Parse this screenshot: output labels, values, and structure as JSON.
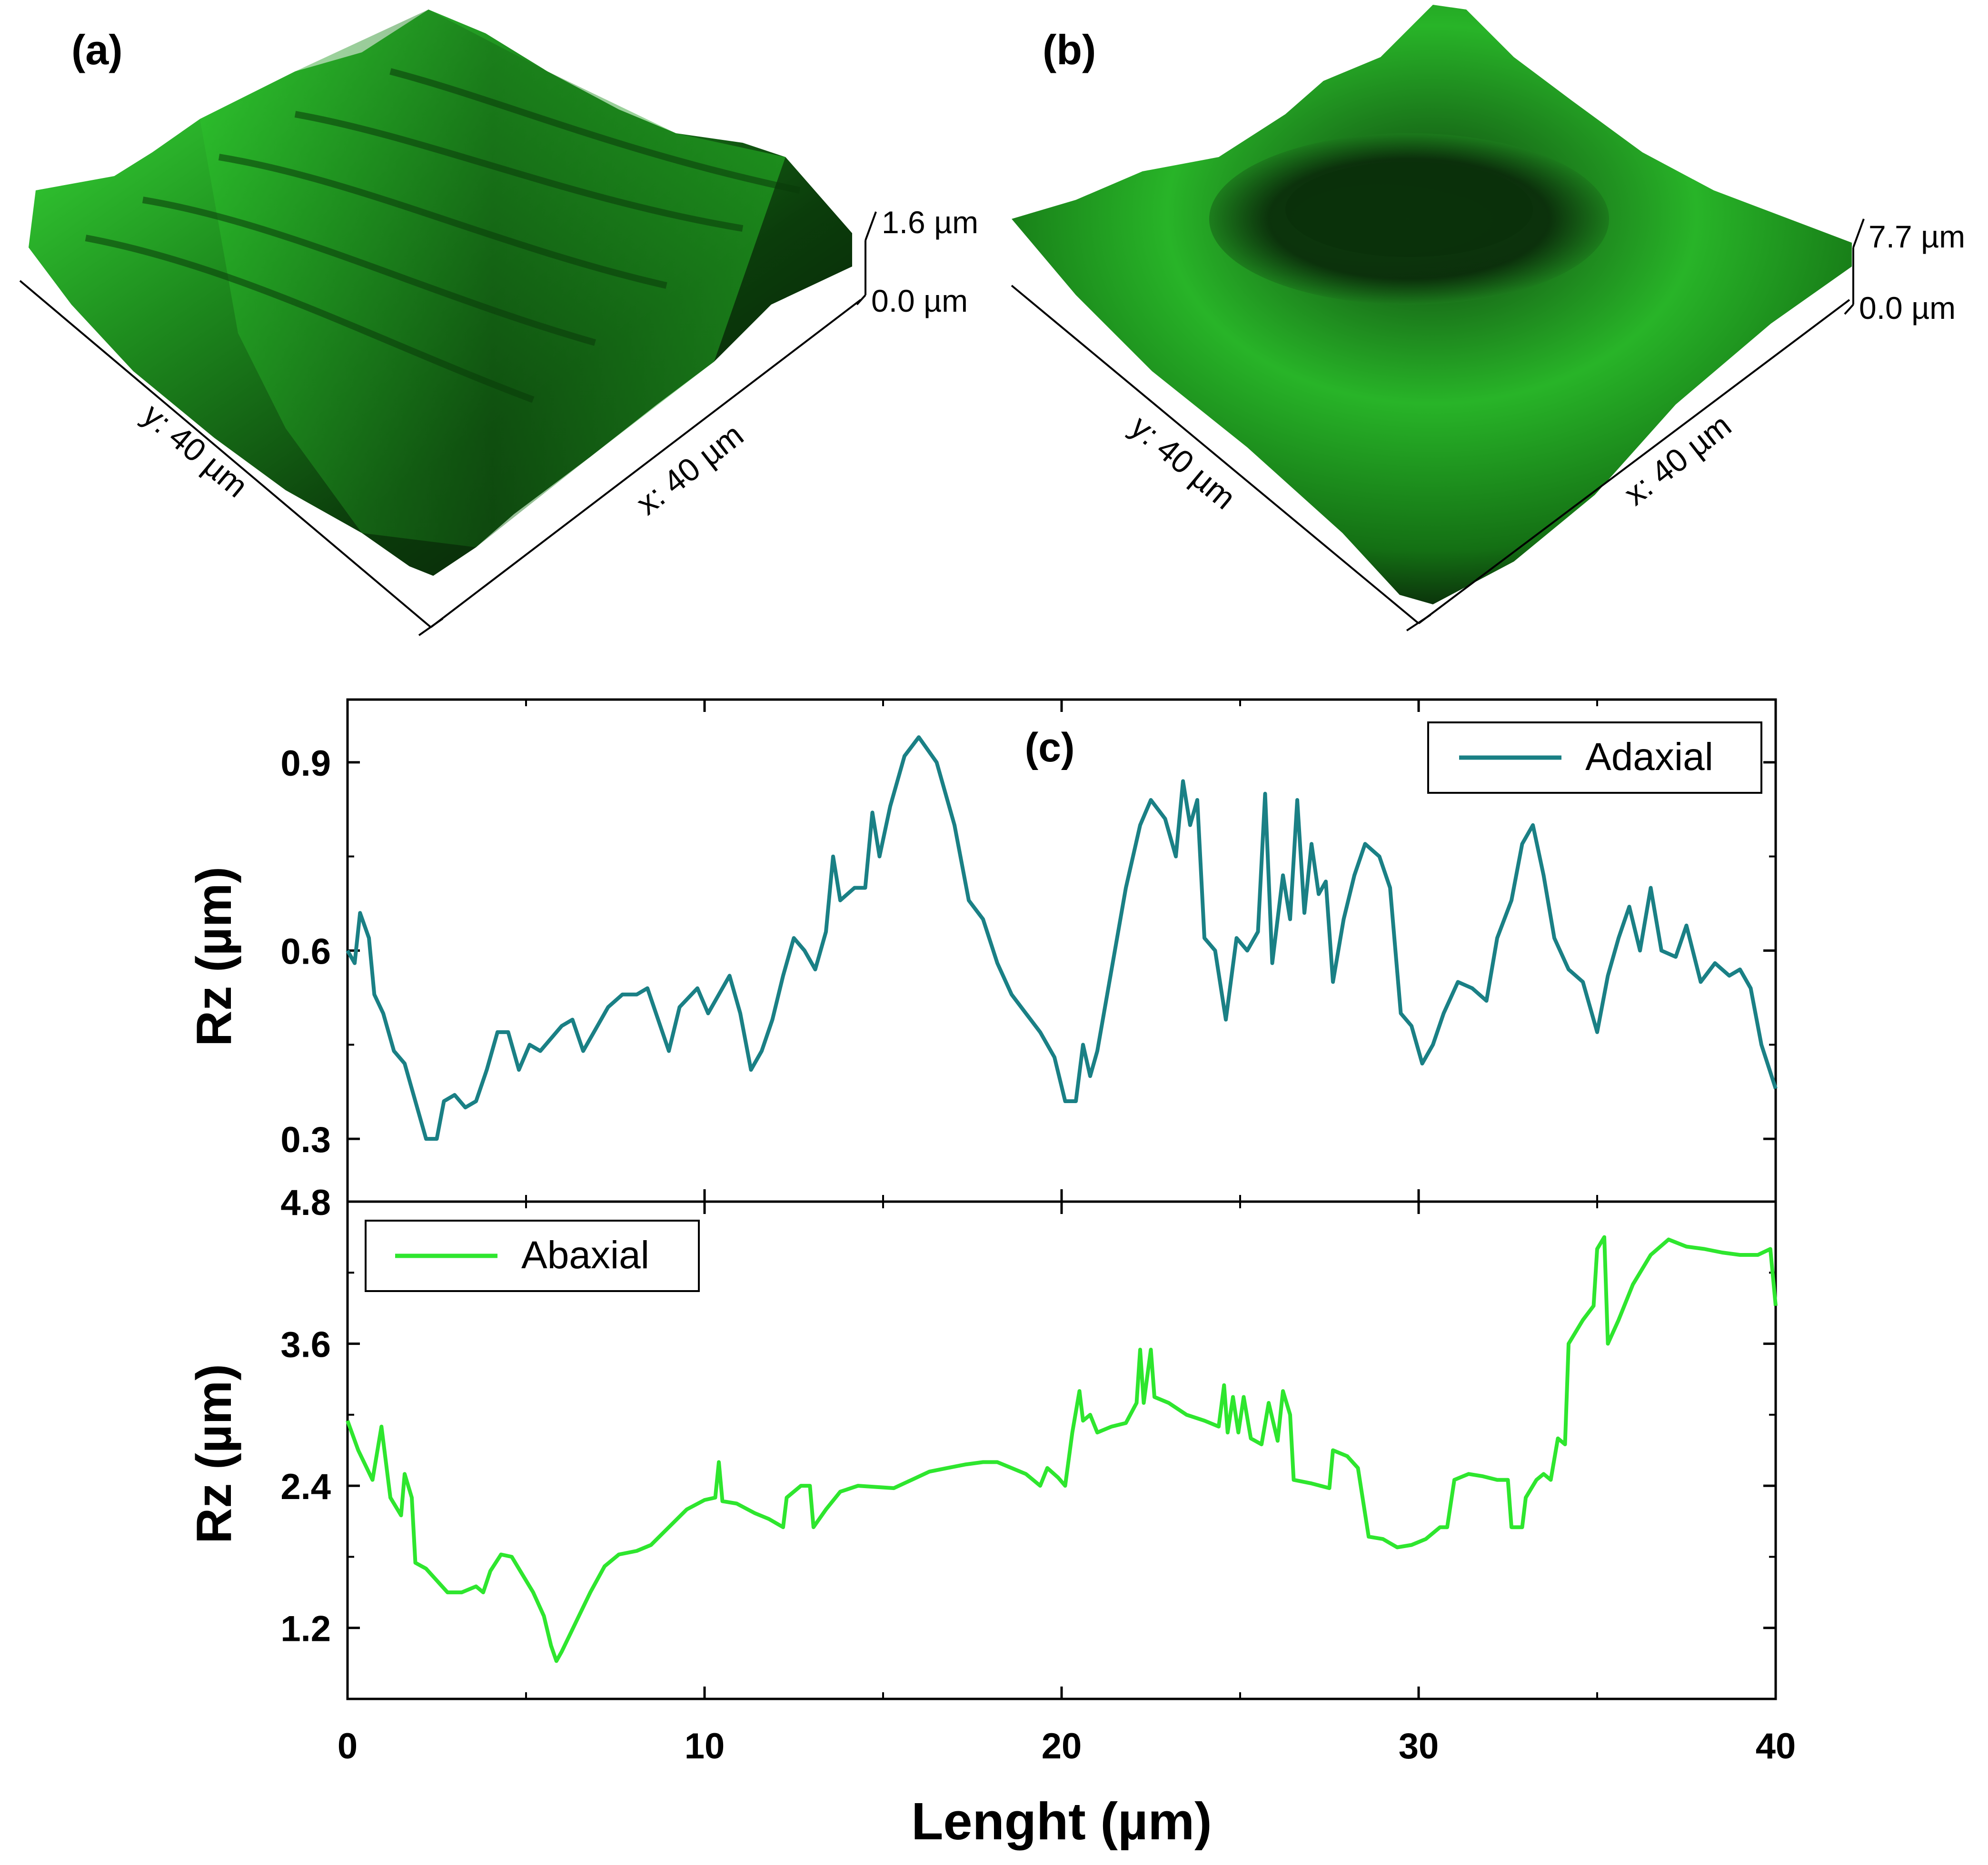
{
  "panels": {
    "a": {
      "label": "(a)",
      "z_max": "1.6 µm",
      "z_min": "0.0 µm",
      "y_axis": "y: 40 µm",
      "x_axis": "x: 40 µm"
    },
    "b": {
      "label": "(b)",
      "z_max": "7.7 µm",
      "z_min": "0.0 µm",
      "y_axis": "y: 40 µm",
      "x_axis": "x: 40 µm"
    }
  },
  "colors": {
    "adaxial": "#1A8085",
    "abaxial": "#2EE62E",
    "surface_light": "#3CE83C",
    "surface_dark": "#061306"
  },
  "chart_data": {
    "type": "line",
    "panel_label": "(c)",
    "xlabel": "Lenght (µm)",
    "xlim": [
      0,
      40
    ],
    "xticks": [
      0,
      10,
      20,
      30,
      40
    ],
    "xtick_labels": [
      "0",
      "10",
      "20",
      "30",
      "40"
    ],
    "series": [
      {
        "name": "Adaxial",
        "ylabel": "Rz (µm)",
        "ylim": [
          0.2,
          1.0
        ],
        "yticks": [
          0.3,
          0.6,
          0.9
        ],
        "ytick_labels": [
          "0.3",
          "0.6",
          "0.9"
        ],
        "legend_position": "top-right",
        "points": [
          [
            0,
            0.6
          ],
          [
            0.2,
            0.58
          ],
          [
            0.35,
            0.66
          ],
          [
            0.6,
            0.62
          ],
          [
            0.75,
            0.53
          ],
          [
            1,
            0.5
          ],
          [
            1.3,
            0.44
          ],
          [
            1.6,
            0.42
          ],
          [
            2,
            0.34
          ],
          [
            2.2,
            0.3
          ],
          [
            2.5,
            0.3
          ],
          [
            2.7,
            0.36
          ],
          [
            3,
            0.37
          ],
          [
            3.3,
            0.35
          ],
          [
            3.6,
            0.36
          ],
          [
            3.9,
            0.41
          ],
          [
            4.2,
            0.47
          ],
          [
            4.5,
            0.47
          ],
          [
            4.8,
            0.41
          ],
          [
            5.1,
            0.45
          ],
          [
            5.4,
            0.44
          ],
          [
            5.7,
            0.46
          ],
          [
            6,
            0.48
          ],
          [
            6.3,
            0.49
          ],
          [
            6.6,
            0.44
          ],
          [
            7,
            0.48
          ],
          [
            7.3,
            0.51
          ],
          [
            7.7,
            0.53
          ],
          [
            8.1,
            0.53
          ],
          [
            8.4,
            0.54
          ],
          [
            8.7,
            0.49
          ],
          [
            9,
            0.44
          ],
          [
            9.3,
            0.51
          ],
          [
            9.8,
            0.54
          ],
          [
            10.1,
            0.5
          ],
          [
            10.4,
            0.53
          ],
          [
            10.7,
            0.56
          ],
          [
            11,
            0.5
          ],
          [
            11.3,
            0.41
          ],
          [
            11.6,
            0.44
          ],
          [
            11.9,
            0.49
          ],
          [
            12.2,
            0.56
          ],
          [
            12.5,
            0.62
          ],
          [
            12.8,
            0.6
          ],
          [
            13.1,
            0.57
          ],
          [
            13.4,
            0.63
          ],
          [
            13.6,
            0.75
          ],
          [
            13.8,
            0.68
          ],
          [
            14.2,
            0.7
          ],
          [
            14.5,
            0.7
          ],
          [
            14.7,
            0.82
          ],
          [
            14.9,
            0.75
          ],
          [
            15.2,
            0.83
          ],
          [
            15.6,
            0.91
          ],
          [
            16,
            0.94
          ],
          [
            16.5,
            0.9
          ],
          [
            17,
            0.8
          ],
          [
            17.4,
            0.68
          ],
          [
            17.8,
            0.65
          ],
          [
            18.2,
            0.58
          ],
          [
            18.6,
            0.53
          ],
          [
            19,
            0.5
          ],
          [
            19.4,
            0.47
          ],
          [
            19.8,
            0.43
          ],
          [
            20.1,
            0.36
          ],
          [
            20.4,
            0.36
          ],
          [
            20.6,
            0.45
          ],
          [
            20.8,
            0.4
          ],
          [
            21,
            0.44
          ],
          [
            21.4,
            0.57
          ],
          [
            21.8,
            0.7
          ],
          [
            22.2,
            0.8
          ],
          [
            22.5,
            0.84
          ],
          [
            22.9,
            0.81
          ],
          [
            23.2,
            0.75
          ],
          [
            23.4,
            0.87
          ],
          [
            23.6,
            0.8
          ],
          [
            23.8,
            0.84
          ],
          [
            24,
            0.62
          ],
          [
            24.3,
            0.6
          ],
          [
            24.6,
            0.49
          ],
          [
            24.9,
            0.62
          ],
          [
            25.2,
            0.6
          ],
          [
            25.5,
            0.63
          ],
          [
            25.7,
            0.85
          ],
          [
            25.9,
            0.58
          ],
          [
            26.2,
            0.72
          ],
          [
            26.4,
            0.65
          ],
          [
            26.6,
            0.84
          ],
          [
            26.8,
            0.66
          ],
          [
            27,
            0.77
          ],
          [
            27.2,
            0.69
          ],
          [
            27.4,
            0.71
          ],
          [
            27.6,
            0.55
          ],
          [
            27.9,
            0.65
          ],
          [
            28.2,
            0.72
          ],
          [
            28.5,
            0.77
          ],
          [
            28.9,
            0.75
          ],
          [
            29.2,
            0.7
          ],
          [
            29.5,
            0.5
          ],
          [
            29.8,
            0.48
          ],
          [
            30.1,
            0.42
          ],
          [
            30.4,
            0.45
          ],
          [
            30.7,
            0.5
          ],
          [
            31.1,
            0.55
          ],
          [
            31.5,
            0.54
          ],
          [
            31.9,
            0.52
          ],
          [
            32.2,
            0.62
          ],
          [
            32.6,
            0.68
          ],
          [
            32.9,
            0.77
          ],
          [
            33.2,
            0.8
          ],
          [
            33.5,
            0.72
          ],
          [
            33.8,
            0.62
          ],
          [
            34.2,
            0.57
          ],
          [
            34.6,
            0.55
          ],
          [
            35,
            0.47
          ],
          [
            35.3,
            0.56
          ],
          [
            35.6,
            0.62
          ],
          [
            35.9,
            0.67
          ],
          [
            36.2,
            0.6
          ],
          [
            36.5,
            0.7
          ],
          [
            36.8,
            0.6
          ],
          [
            37.2,
            0.59
          ],
          [
            37.5,
            0.64
          ],
          [
            37.9,
            0.55
          ],
          [
            38.3,
            0.58
          ],
          [
            38.7,
            0.56
          ],
          [
            39,
            0.57
          ],
          [
            39.3,
            0.54
          ],
          [
            39.6,
            0.45
          ],
          [
            40,
            0.38
          ]
        ]
      },
      {
        "name": "Abaxial",
        "ylabel": "Rz (µm)",
        "ylim": [
          0.6,
          4.8
        ],
        "yticks": [
          1.2,
          2.4,
          3.6,
          4.8
        ],
        "ytick_labels": [
          "1.2",
          "2.4",
          "3.6",
          "4.8"
        ],
        "legend_position": "top-left",
        "points": [
          [
            0,
            2.95
          ],
          [
            0.3,
            2.7
          ],
          [
            0.7,
            2.45
          ],
          [
            0.95,
            2.9
          ],
          [
            1.2,
            2.3
          ],
          [
            1.5,
            2.15
          ],
          [
            1.6,
            2.5
          ],
          [
            1.8,
            2.3
          ],
          [
            1.9,
            1.75
          ],
          [
            2.2,
            1.7
          ],
          [
            2.5,
            1.6
          ],
          [
            2.8,
            1.5
          ],
          [
            3.2,
            1.5
          ],
          [
            3.6,
            1.55
          ],
          [
            3.8,
            1.5
          ],
          [
            4,
            1.68
          ],
          [
            4.3,
            1.82
          ],
          [
            4.6,
            1.8
          ],
          [
            4.9,
            1.65
          ],
          [
            5.2,
            1.5
          ],
          [
            5.5,
            1.3
          ],
          [
            5.7,
            1.05
          ],
          [
            5.85,
            0.92
          ],
          [
            6,
            1.0
          ],
          [
            6.4,
            1.25
          ],
          [
            6.8,
            1.5
          ],
          [
            7.2,
            1.72
          ],
          [
            7.6,
            1.82
          ],
          [
            8.1,
            1.85
          ],
          [
            8.5,
            1.9
          ],
          [
            9,
            2.05
          ],
          [
            9.5,
            2.2
          ],
          [
            10,
            2.28
          ],
          [
            10.3,
            2.3
          ],
          [
            10.4,
            2.6
          ],
          [
            10.5,
            2.27
          ],
          [
            10.9,
            2.25
          ],
          [
            11.4,
            2.17
          ],
          [
            11.8,
            2.12
          ],
          [
            12.2,
            2.05
          ],
          [
            12.3,
            2.3
          ],
          [
            12.7,
            2.4
          ],
          [
            12.95,
            2.4
          ],
          [
            13.05,
            2.05
          ],
          [
            13.4,
            2.2
          ],
          [
            13.8,
            2.35
          ],
          [
            14.3,
            2.4
          ],
          [
            14.8,
            2.39
          ],
          [
            15.3,
            2.38
          ],
          [
            15.8,
            2.45
          ],
          [
            16.3,
            2.52
          ],
          [
            16.8,
            2.55
          ],
          [
            17.3,
            2.58
          ],
          [
            17.8,
            2.6
          ],
          [
            18.2,
            2.6
          ],
          [
            18.6,
            2.55
          ],
          [
            19,
            2.5
          ],
          [
            19.4,
            2.4
          ],
          [
            19.6,
            2.55
          ],
          [
            19.9,
            2.47
          ],
          [
            20.1,
            2.4
          ],
          [
            20.3,
            2.85
          ],
          [
            20.5,
            3.2
          ],
          [
            20.6,
            2.95
          ],
          [
            20.8,
            3.0
          ],
          [
            21,
            2.85
          ],
          [
            21.4,
            2.9
          ],
          [
            21.8,
            2.93
          ],
          [
            22.1,
            3.1
          ],
          [
            22.2,
            3.55
          ],
          [
            22.3,
            3.1
          ],
          [
            22.5,
            3.55
          ],
          [
            22.6,
            3.15
          ],
          [
            23,
            3.1
          ],
          [
            23.5,
            3.0
          ],
          [
            24,
            2.95
          ],
          [
            24.4,
            2.9
          ],
          [
            24.55,
            3.25
          ],
          [
            24.65,
            2.85
          ],
          [
            24.8,
            3.15
          ],
          [
            24.95,
            2.85
          ],
          [
            25.1,
            3.15
          ],
          [
            25.3,
            2.8
          ],
          [
            25.6,
            2.75
          ],
          [
            25.8,
            3.1
          ],
          [
            26.05,
            2.78
          ],
          [
            26.2,
            3.2
          ],
          [
            26.4,
            3.0
          ],
          [
            26.5,
            2.45
          ],
          [
            27,
            2.42
          ],
          [
            27.5,
            2.38
          ],
          [
            27.6,
            2.7
          ],
          [
            28,
            2.65
          ],
          [
            28.3,
            2.55
          ],
          [
            28.6,
            1.97
          ],
          [
            29,
            1.95
          ],
          [
            29.4,
            1.88
          ],
          [
            29.8,
            1.9
          ],
          [
            30.2,
            1.95
          ],
          [
            30.6,
            2.05
          ],
          [
            30.8,
            2.05
          ],
          [
            31,
            2.45
          ],
          [
            31.4,
            2.5
          ],
          [
            31.8,
            2.48
          ],
          [
            32.2,
            2.45
          ],
          [
            32.5,
            2.45
          ],
          [
            32.6,
            2.05
          ],
          [
            32.9,
            2.05
          ],
          [
            33,
            2.3
          ],
          [
            33.3,
            2.45
          ],
          [
            33.5,
            2.5
          ],
          [
            33.7,
            2.45
          ],
          [
            33.9,
            2.8
          ],
          [
            34.1,
            2.75
          ],
          [
            34.2,
            3.6
          ],
          [
            34.6,
            3.8
          ],
          [
            34.9,
            3.92
          ],
          [
            35,
            4.4
          ],
          [
            35.2,
            4.5
          ],
          [
            35.3,
            3.6
          ],
          [
            35.6,
            3.8
          ],
          [
            36,
            4.1
          ],
          [
            36.5,
            4.35
          ],
          [
            37,
            4.48
          ],
          [
            37.5,
            4.42
          ],
          [
            38,
            4.4
          ],
          [
            38.5,
            4.37
          ],
          [
            39,
            4.35
          ],
          [
            39.5,
            4.35
          ],
          [
            39.85,
            4.4
          ],
          [
            40,
            3.92
          ]
        ]
      }
    ]
  }
}
